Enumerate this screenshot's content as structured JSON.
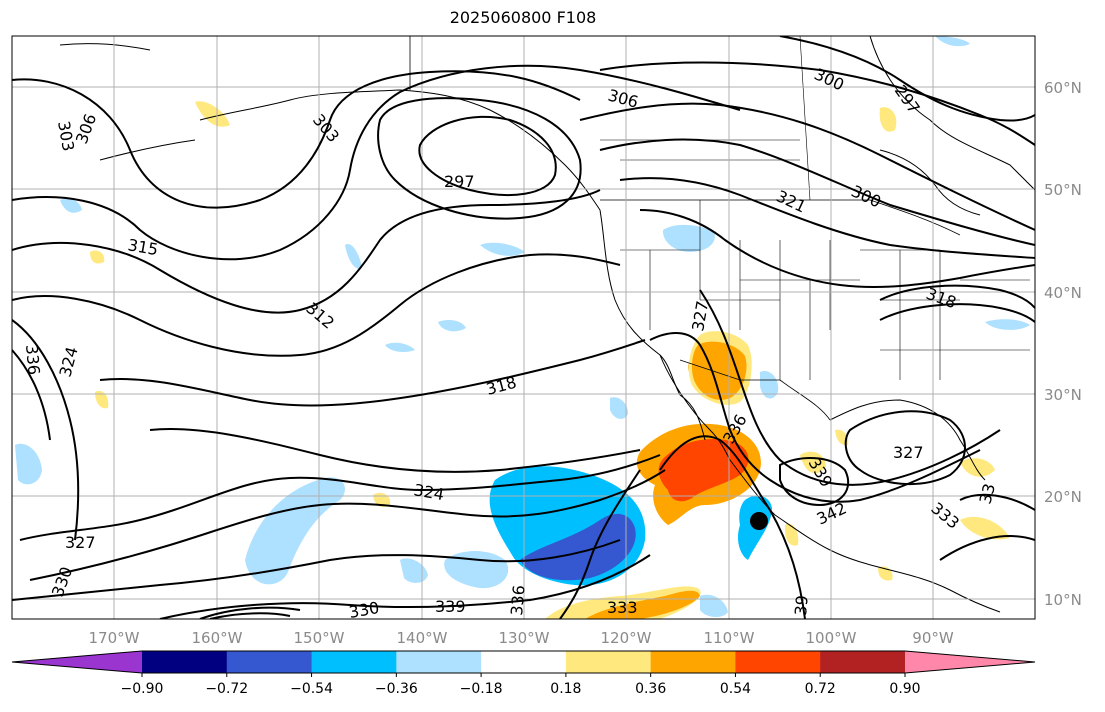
{
  "title": "2025060800 F108",
  "map": {
    "lon_labels": [
      "170°W",
      "160°W",
      "150°W",
      "140°W",
      "130°W",
      "120°W",
      "110°W",
      "100°W",
      "90°W"
    ],
    "lat_labels": [
      "60°N",
      "50°N",
      "40°N",
      "30°N",
      "20°N",
      "10°N"
    ],
    "contour_labels": [
      {
        "text": "303",
        "kind": "heights"
      },
      {
        "text": "306",
        "kind": "heights"
      },
      {
        "text": "303",
        "kind": "heights"
      },
      {
        "text": "297",
        "kind": "heights"
      },
      {
        "text": "315",
        "kind": "heights"
      },
      {
        "text": "312",
        "kind": "heights"
      },
      {
        "text": "318",
        "kind": "heights"
      },
      {
        "text": "324",
        "kind": "heights"
      },
      {
        "text": "327",
        "kind": "heights"
      },
      {
        "text": "330",
        "kind": "heights"
      },
      {
        "text": "330",
        "kind": "heights"
      },
      {
        "text": "333",
        "kind": "heights"
      },
      {
        "text": "336",
        "kind": "heights"
      },
      {
        "text": "339",
        "kind": "heights"
      },
      {
        "text": "306",
        "kind": "heights"
      },
      {
        "text": "300",
        "kind": "heights"
      },
      {
        "text": "297",
        "kind": "heights"
      },
      {
        "text": "300",
        "kind": "heights"
      },
      {
        "text": "321",
        "kind": "heights"
      },
      {
        "text": "318",
        "kind": "heights"
      },
      {
        "text": "327",
        "kind": "heights"
      },
      {
        "text": "327",
        "kind": "heights"
      },
      {
        "text": "339",
        "kind": "heights"
      },
      {
        "text": "342",
        "kind": "heights"
      },
      {
        "text": "39",
        "kind": "heights"
      },
      {
        "text": "33",
        "kind": "heights"
      },
      {
        "text": "333",
        "kind": "heights"
      },
      {
        "text": "336",
        "kind": "heights"
      },
      {
        "text": "324",
        "kind": "heights"
      },
      {
        "text": "336",
        "kind": "heights"
      }
    ]
  },
  "colorbar": {
    "ticks": [
      "−0.90",
      "−0.72",
      "−0.54",
      "−0.36",
      "−0.18",
      "0.18",
      "0.36",
      "0.54",
      "0.72",
      "0.90"
    ],
    "colors": [
      "#9a35d0",
      "#000080",
      "#3557cf",
      "#00bfff",
      "#aee0ff",
      "#ffffff",
      "#ffe97f",
      "#ffa500",
      "#ff4500",
      "#b22222",
      "#ff88aa"
    ]
  }
}
